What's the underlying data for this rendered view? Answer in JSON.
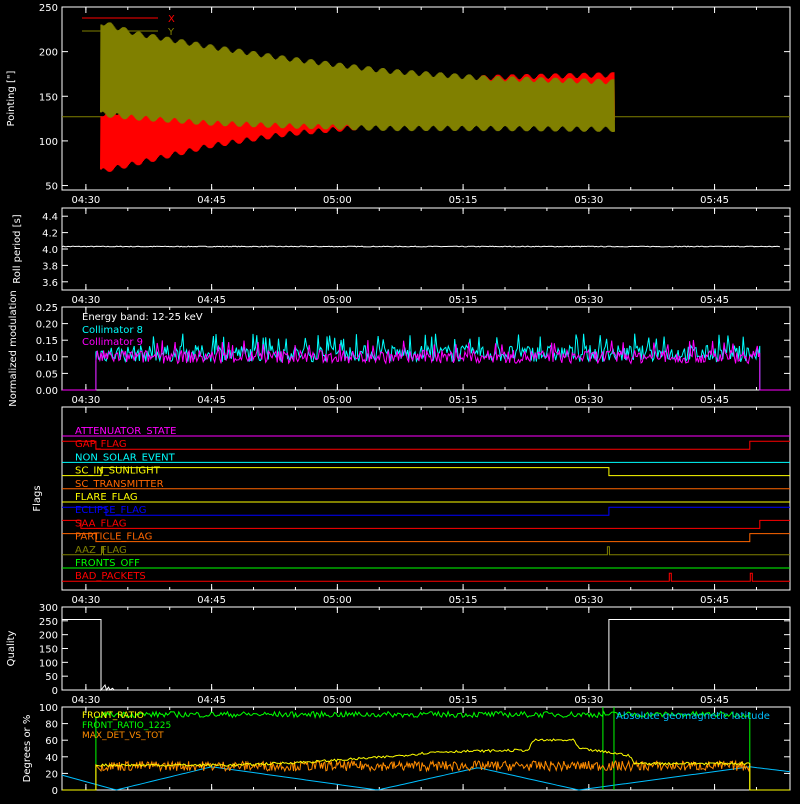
{
  "chart_data": [
    {
      "type": "line",
      "ylabel": "Pointing [\"]",
      "ylim": [
        45,
        250
      ],
      "yticks": [
        50,
        100,
        150,
        200,
        250
      ],
      "xticks": [
        "04:30",
        "04:45",
        "05:00",
        "05:15",
        "05:30",
        "05:45"
      ],
      "legend": "top-left",
      "series": [
        {
          "name": "X",
          "color": "#ff0000",
          "envelope_time": [
            4.53,
            4.6,
            4.75,
            4.9,
            5.1,
            5.3,
            5.55
          ],
          "upper": [
            130,
            134,
            145,
            155,
            165,
            171,
            174
          ],
          "lower": [
            66,
            75,
            95,
            108,
            118,
            124,
            126
          ]
        },
        {
          "name": "Y",
          "color": "#808000",
          "envelope_time": [
            4.53,
            4.6,
            4.75,
            4.9,
            5.1,
            5.3,
            5.55
          ],
          "upper": [
            233,
            220,
            205,
            192,
            178,
            170,
            166
          ],
          "lower": [
            130,
            126,
            120,
            117,
            114,
            114,
            113
          ]
        }
      ],
      "reference_line": 127
    },
    {
      "type": "line",
      "ylabel": "Roll period [s]",
      "ylim": [
        3.5,
        4.5
      ],
      "yticks": [
        "3.6",
        "3.8",
        "4.0",
        "4.2",
        "4.4"
      ],
      "xticks": [
        "04:30",
        "04:45",
        "05:00",
        "05:15",
        "05:30",
        "05:45"
      ],
      "series": [
        {
          "name": "",
          "value": 4.03,
          "color": "#ffffff"
        }
      ]
    },
    {
      "type": "line",
      "ylabel": "Normalized modulation",
      "ylim": [
        0,
        0.25
      ],
      "yticks": [
        "0.00",
        "0.05",
        "0.10",
        "0.15",
        "0.20",
        "0.25"
      ],
      "xticks": [
        "04:30",
        "04:45",
        "05:00",
        "05:15",
        "05:30",
        "05:45"
      ],
      "annotation": "Energy band: 12-25 keV",
      "series": [
        {
          "name": "Collimator 8",
          "color": "#00ffff",
          "mean": 0.11,
          "spread": 0.025,
          "start": 4.52,
          "end": 5.84
        },
        {
          "name": "Collimator 9",
          "color": "#ff00ff",
          "mean": 0.1,
          "spread": 0.02,
          "start": 4.52,
          "end": 5.84
        }
      ]
    },
    {
      "type": "line",
      "ylabel": "Flags",
      "xticks": [
        "04:30",
        "04:45",
        "05:00",
        "05:15",
        "05:30",
        "05:45"
      ],
      "flags": [
        {
          "name": "ATTENUATOR_STATE",
          "color": "#ff00ff"
        },
        {
          "name": "GAP_FLAG",
          "color": "#ff0000"
        },
        {
          "name": "NON_SOLAR_EVENT",
          "color": "#00ffff"
        },
        {
          "name": "SC_IN_SUNLIGHT",
          "color": "#ffff00"
        },
        {
          "name": "SC_TRANSMITTER",
          "color": "#ff6600"
        },
        {
          "name": "FLARE_FLAG",
          "color": "#ffff00"
        },
        {
          "name": "ECLIPSE_FLAG",
          "color": "#0000ff"
        },
        {
          "name": "SAA_FLAG",
          "color": "#ff0000"
        },
        {
          "name": "PARTICLE_FLAG",
          "color": "#ff6600"
        },
        {
          "name": "AAZ_FLAG",
          "color": "#808000"
        },
        {
          "name": "FRONTS_OFF",
          "color": "#00ff00"
        },
        {
          "name": "BAD_PACKETS",
          "color": "#ff0000"
        }
      ]
    },
    {
      "type": "line",
      "ylabel": "Quality",
      "ylim": [
        0,
        300
      ],
      "yticks": [
        0,
        50,
        100,
        150,
        200,
        250,
        300
      ],
      "xticks": [
        "04:30",
        "04:45",
        "05:00",
        "05:15",
        "05:30",
        "05:45"
      ],
      "series": [
        {
          "name": "",
          "color": "#ffffff",
          "high_value": 255,
          "low_value": 0
        }
      ]
    },
    {
      "type": "line",
      "ylabel": "Degrees or %",
      "ylim": [
        0,
        100
      ],
      "yticks": [
        0,
        20,
        40,
        60,
        80,
        100
      ],
      "series": [
        {
          "name": "FRONT_RATIO",
          "color": "#ffff00"
        },
        {
          "name": "FRONT_RATIO_1225",
          "color": "#00ff00"
        },
        {
          "name": "MAX_DET_VS_TOT",
          "color": "#ff8c00"
        },
        {
          "name": "Absolute geomagnetic latitude",
          "color": "#00bfff"
        }
      ]
    }
  ]
}
